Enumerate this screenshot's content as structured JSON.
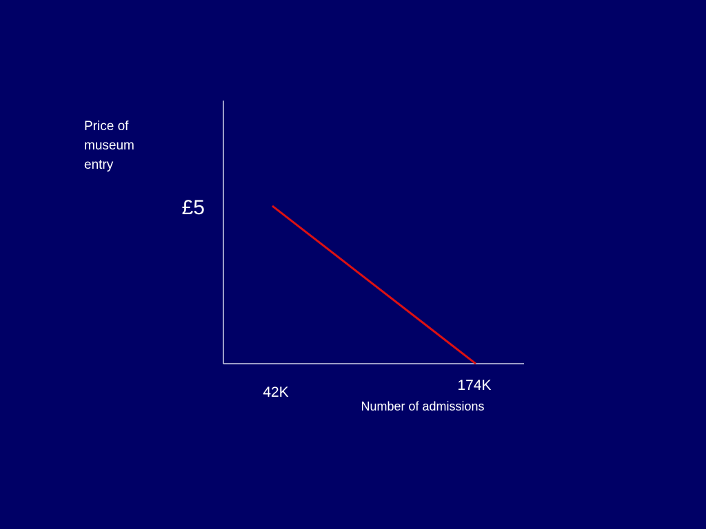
{
  "chart_data": {
    "type": "line",
    "ylabel_lines": [
      "Price of",
      "museum",
      "entry"
    ],
    "xlabel": "Number of admissions",
    "y_tick_label": "£5",
    "x_tick_labels": [
      "42K",
      "174K"
    ],
    "series": [
      {
        "x": [
          42000,
          174000
        ],
        "y": [
          5,
          0
        ]
      }
    ],
    "grid": false,
    "legend": "none",
    "colors": {
      "background": "#000066",
      "axis": "#cfd3e8",
      "line": "#dd1111",
      "text": "#ffffff"
    }
  }
}
